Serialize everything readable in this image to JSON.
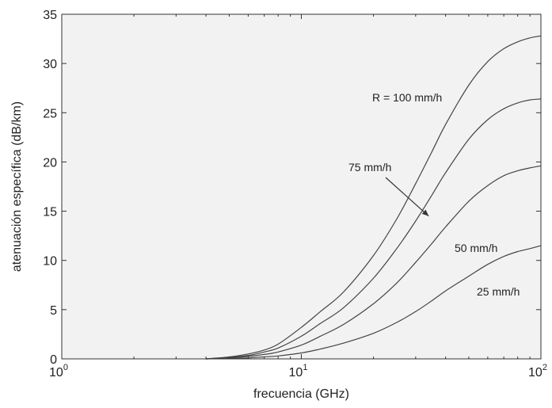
{
  "chart_data": {
    "type": "line",
    "title": "",
    "xlabel": "frecuencia (GHz)",
    "ylabel": "atenuación específica (dB/km)",
    "xscale": "log",
    "xlim": [
      1,
      100
    ],
    "ylim": [
      0,
      35
    ],
    "x_ticks": [
      {
        "base": "10",
        "exp": "0"
      },
      {
        "base": "10",
        "exp": "1"
      },
      {
        "base": "10",
        "exp": "2"
      }
    ],
    "y_ticks": [
      "0",
      "5",
      "10",
      "15",
      "20",
      "25",
      "30",
      "35"
    ],
    "grid": false,
    "plot_background": "#f2f2f2",
    "line_color": "#444444",
    "x": [
      4,
      5,
      6,
      7,
      8,
      10,
      12,
      15,
      20,
      25,
      30,
      35,
      40,
      50,
      60,
      70,
      80,
      90,
      100
    ],
    "series": [
      {
        "name": "R = 100 mm/h",
        "values": [
          0,
          0.2,
          0.5,
          0.9,
          1.5,
          3.2,
          4.8,
          6.8,
          10.5,
          14.2,
          17.8,
          21.0,
          23.8,
          27.8,
          30.2,
          31.5,
          32.2,
          32.6,
          32.8
        ]
      },
      {
        "name": "75 mm/h",
        "values": [
          0,
          0.15,
          0.35,
          0.7,
          1.1,
          2.3,
          3.6,
          5.2,
          8.2,
          11.2,
          14.0,
          16.6,
          18.9,
          22.3,
          24.3,
          25.4,
          26.0,
          26.3,
          26.4
        ]
      },
      {
        "name": "50 mm/h",
        "values": [
          0,
          0.1,
          0.25,
          0.45,
          0.7,
          1.4,
          2.3,
          3.5,
          5.6,
          7.7,
          9.8,
          11.7,
          13.4,
          16.0,
          17.6,
          18.6,
          19.1,
          19.4,
          19.6
        ]
      },
      {
        "name": "25 mm/h",
        "values": [
          0,
          0.05,
          0.1,
          0.2,
          0.3,
          0.6,
          1.0,
          1.6,
          2.6,
          3.7,
          4.8,
          5.9,
          6.9,
          8.4,
          9.6,
          10.4,
          10.9,
          11.2,
          11.5
        ]
      }
    ],
    "annotations": [
      {
        "text": "R = 100 mm/h",
        "series": 0
      },
      {
        "text": "75 mm/h",
        "series": 1,
        "arrow_to": {
          "x": 34,
          "y": 14.5
        }
      },
      {
        "text": "50 mm/h",
        "series": 2
      },
      {
        "text": "25 mm/h",
        "series": 3
      }
    ]
  }
}
